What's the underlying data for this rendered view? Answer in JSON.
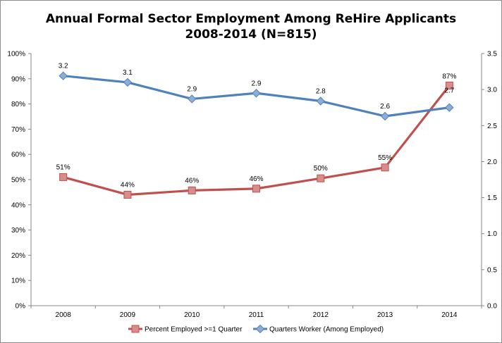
{
  "chart_data": {
    "type": "line",
    "title_line1": "Annual Formal Sector Employment Among ReHire Applicants",
    "title_line2": "2008-2014 (N=815)",
    "categories": [
      "2008",
      "2009",
      "2010",
      "2011",
      "2012",
      "2013",
      "2014"
    ],
    "y_left": {
      "min": 0,
      "max": 1.0,
      "ticks": [
        "0%",
        "10%",
        "20%",
        "30%",
        "40%",
        "50%",
        "60%",
        "70%",
        "80%",
        "90%",
        "100%"
      ]
    },
    "y_right": {
      "min": 0,
      "max": 3.5,
      "ticks": [
        "0.0",
        "0.5",
        "1.0",
        "1.5",
        "2.0",
        "2.5",
        "3.0",
        "3.5"
      ]
    },
    "grid": false,
    "legend_position": "bottom",
    "series": [
      {
        "name": "Percent Employed >=1 Quarter",
        "axis": "left",
        "color": "#c0504d",
        "marker": "square",
        "values": [
          0.51,
          0.44,
          0.457,
          0.464,
          0.505,
          0.548,
          0.873
        ],
        "labels": [
          "51%",
          "44%",
          "46%",
          "46%",
          "50%",
          "55%",
          "87%"
        ]
      },
      {
        "name": "Quarters Worker (Among Employed)",
        "axis": "right",
        "color": "#4f81bd",
        "marker": "diamond",
        "values": [
          3.19,
          3.1,
          2.87,
          2.95,
          2.84,
          2.63,
          2.75
        ],
        "labels": [
          "3.2",
          "3.1",
          "2.9",
          "2.9",
          "2.8",
          "2.6",
          "2.7"
        ]
      }
    ]
  }
}
